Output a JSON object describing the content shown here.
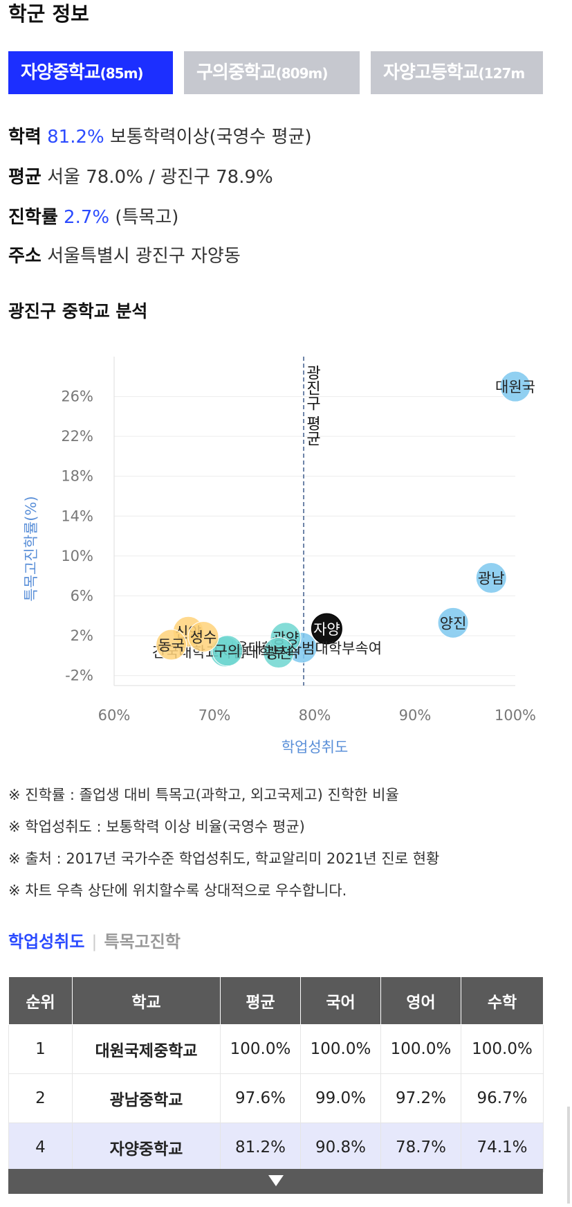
{
  "school_info": {
    "title": "학군 정보",
    "tabs": [
      {
        "name": "자양중학교",
        "distance": "(85m)",
        "active": true
      },
      {
        "name": "구의중학교",
        "distance": "(809m)",
        "active": false
      },
      {
        "name": "자양고등학교",
        "distance": "(127m",
        "active": false
      }
    ],
    "academic": {
      "label": "학력",
      "value": "81.2%",
      "desc": "보통학력이상(국영수 평균)"
    },
    "average": {
      "label": "평균",
      "text": "서울 78.0% / 광진구 78.9%"
    },
    "advance": {
      "label": "진학률",
      "value": "2.7%",
      "desc": "(특목고)"
    },
    "address": {
      "label": "주소",
      "text": "서울특별시 광진구 자양동"
    }
  },
  "analysis": {
    "title": "광진구 중학교 분석"
  },
  "chart_data": {
    "type": "scatter",
    "xlabel": "학업성취도",
    "ylabel": "특목고진학률(%)",
    "xlim": [
      60,
      100
    ],
    "ylim": [
      -3,
      30
    ],
    "xticks": [
      "60%",
      "70%",
      "80%",
      "90%",
      "100%"
    ],
    "yticks": [
      "-2%",
      "2%",
      "6%",
      "10%",
      "14%",
      "18%",
      "22%",
      "26%"
    ],
    "reference_line": {
      "x": 78.9,
      "label": "광진구 평균"
    },
    "points": [
      {
        "label": "대원국",
        "x": 100.0,
        "y": 27.0,
        "color": "#7ec8ee"
      },
      {
        "label": "광남",
        "x": 97.6,
        "y": 7.8,
        "color": "#7ec8ee"
      },
      {
        "label": "양진",
        "x": 93.8,
        "y": 3.3,
        "color": "#7ec8ee"
      },
      {
        "label": "자양",
        "x": 81.2,
        "y": 2.7,
        "color": "#111111"
      },
      {
        "label": "서울대학교사범대학부속여",
        "x": 78.7,
        "y": 0.8,
        "color": "#7ec8ee"
      },
      {
        "label": "광양",
        "x": 77.1,
        "y": 1.8,
        "color": "#6fd6d0"
      },
      {
        "label": "광진",
        "x": 76.4,
        "y": 0.3,
        "color": "#6fd6d0"
      },
      {
        "label": "건국대학교사범대학부속",
        "x": 71.1,
        "y": 0.4,
        "color": "#6fd6d0"
      },
      {
        "label": "구의",
        "x": 71.3,
        "y": 0.5,
        "color": "#6fd6d0"
      },
      {
        "label": "신양",
        "x": 67.4,
        "y": 2.4,
        "color": "#ffd27a"
      },
      {
        "label": "성수",
        "x": 68.9,
        "y": 1.9,
        "color": "#ffd27a"
      },
      {
        "label": "동국",
        "x": 65.7,
        "y": 1.1,
        "color": "#ffd27a"
      }
    ]
  },
  "notes": [
    "※ 진학률 : 졸업생 대비 특목고(과학고, 외고국제고) 진학한 비율",
    "※ 학업성취도 : 보통학력 이상 비율(국영수 평균)",
    "※ 출처 : 2017년 국가수준 학업성취도, 학교알리미 2021년 진로 현황",
    "※ 차트 우측 상단에 위치할수록 상대적으로 우수합니다."
  ],
  "subtabs": {
    "active": "학업성취도",
    "separator": "|",
    "inactive": "특목고진학"
  },
  "ranking_table": {
    "headers": [
      "순위",
      "학교",
      "평균",
      "국어",
      "영어",
      "수학"
    ],
    "rows": [
      [
        "1",
        "대원국제중학교",
        "100.0%",
        "100.0%",
        "100.0%",
        "100.0%"
      ],
      [
        "2",
        "광남중학교",
        "97.6%",
        "99.0%",
        "97.2%",
        "96.7%"
      ],
      [
        "4",
        "자양중학교",
        "81.2%",
        "90.8%",
        "78.7%",
        "74.1%"
      ]
    ],
    "highlight_row": 2
  }
}
